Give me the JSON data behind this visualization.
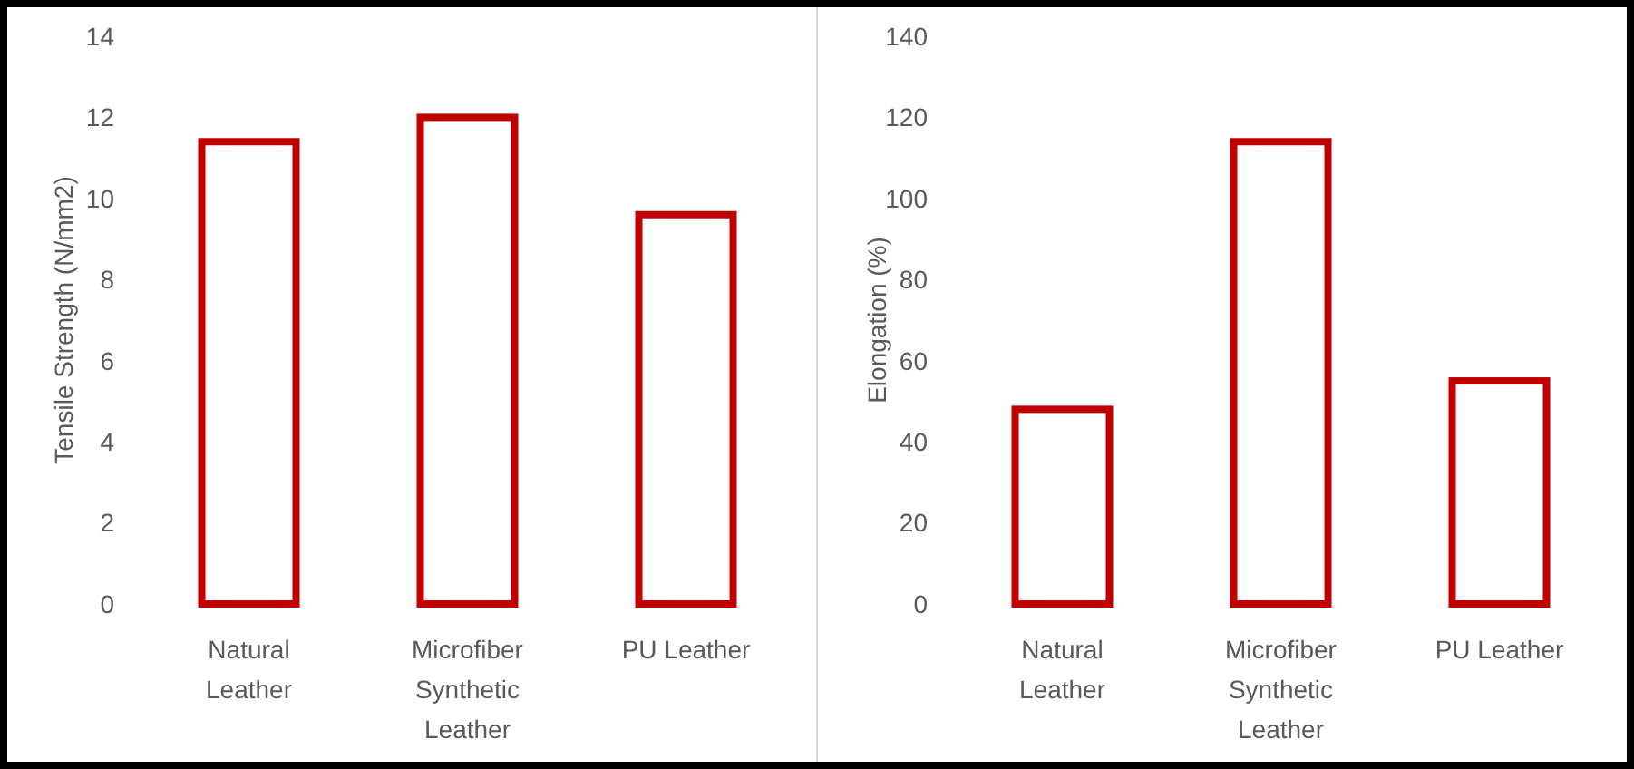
{
  "chart_data": [
    {
      "type": "bar",
      "ylabel": "Tensile Strength (N/mm2)",
      "categories": [
        "Natural Leather",
        "Microfiber Synthetic Leather",
        "PU Leather"
      ],
      "values": [
        11.4,
        12.0,
        9.6
      ],
      "color": "#c00000",
      "ylim": [
        0,
        14
      ],
      "yticks": [
        0,
        2,
        4,
        6,
        8,
        10,
        12,
        14
      ],
      "grid": false
    },
    {
      "type": "bar",
      "ylabel": "Elongation (%)",
      "categories": [
        "Natural Leather",
        "Microfiber Synthetic Leather",
        "PU Leather"
      ],
      "values": [
        48,
        114,
        55
      ],
      "color": "#c00000",
      "ylim": [
        0,
        140
      ],
      "yticks": [
        0,
        20,
        40,
        60,
        80,
        100,
        120,
        140
      ],
      "grid": false
    }
  ]
}
